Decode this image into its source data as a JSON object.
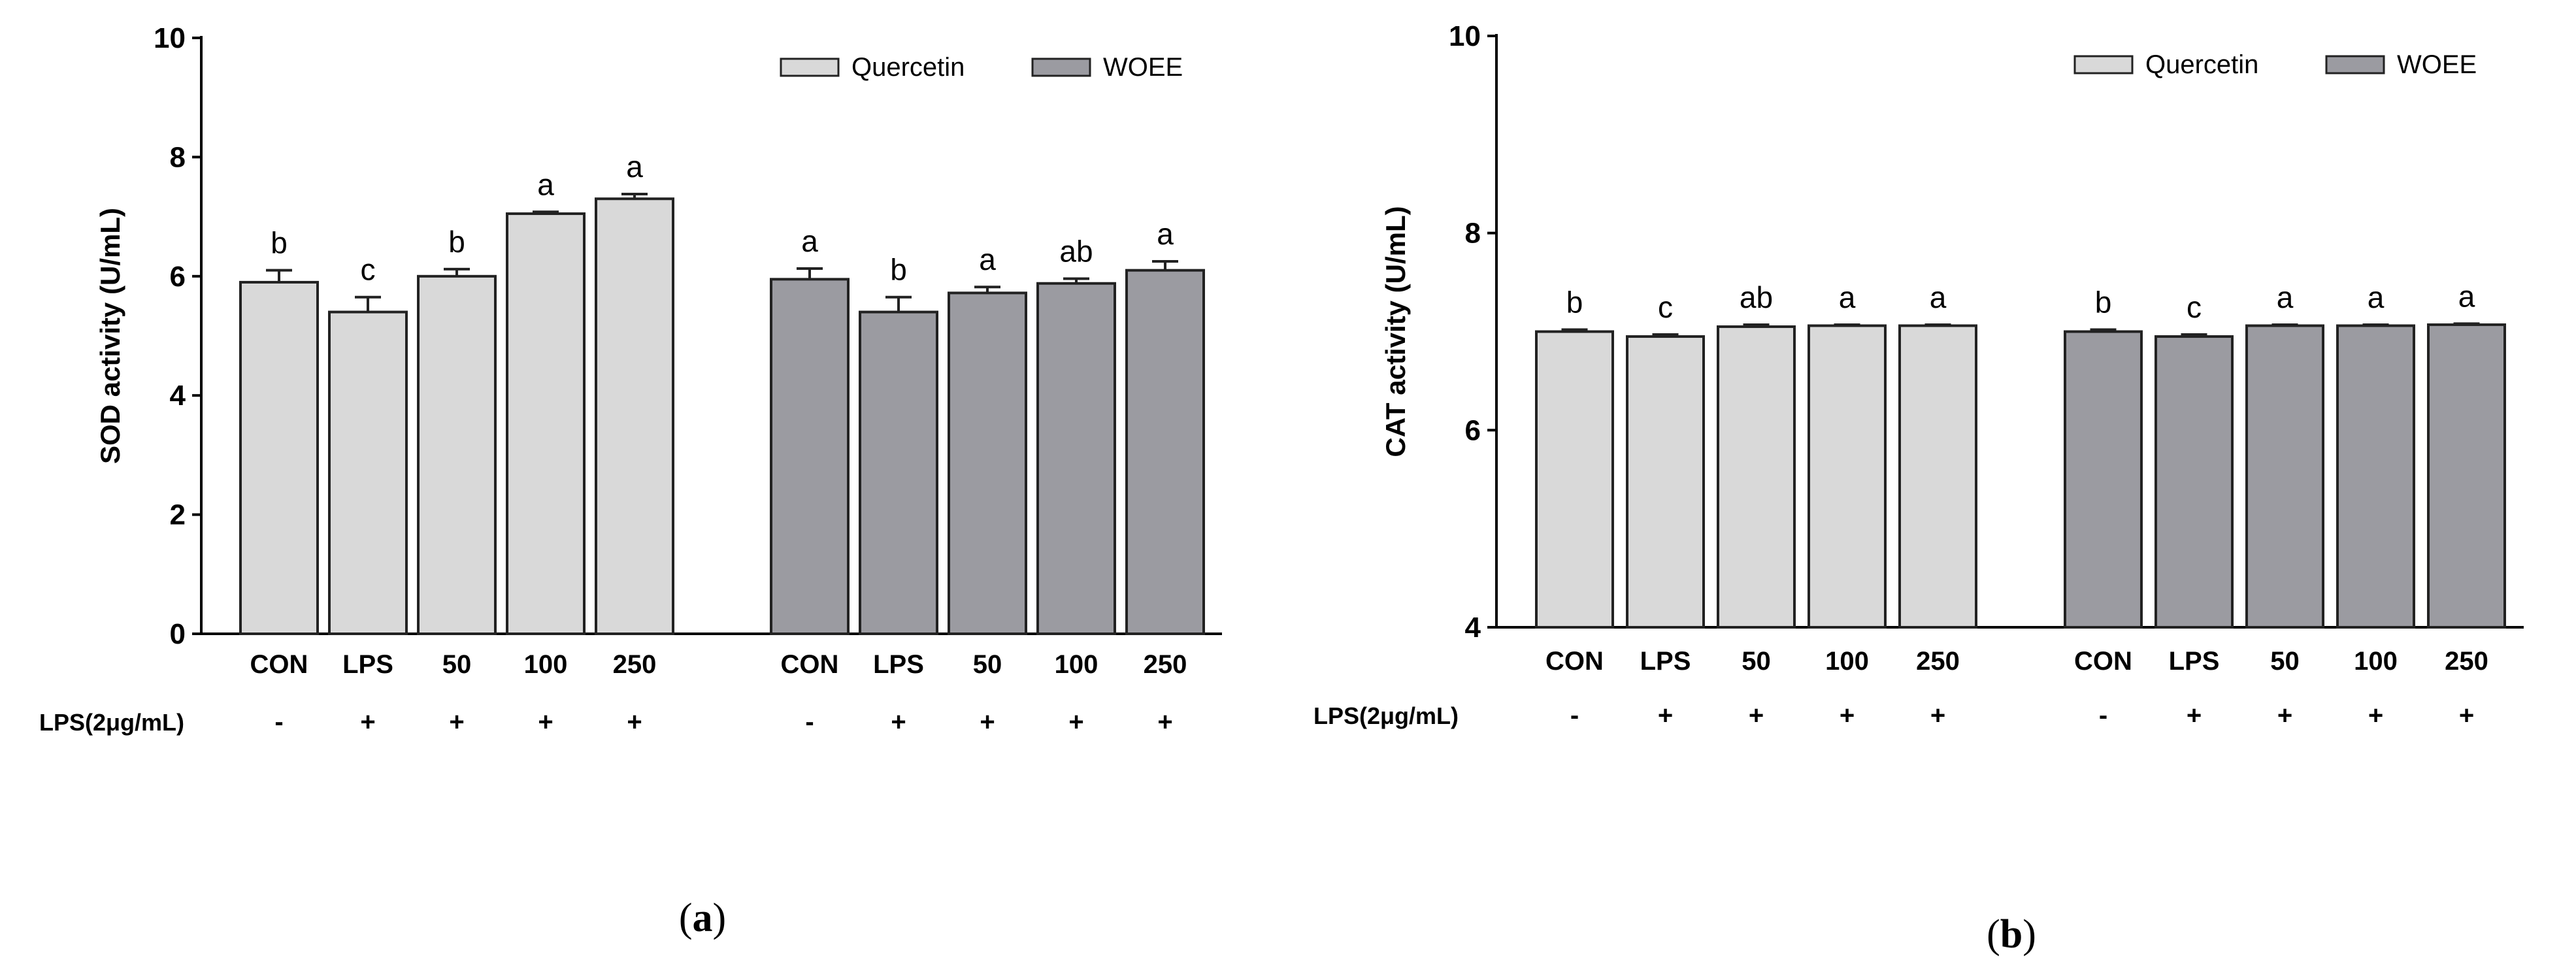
{
  "chart_data": [
    {
      "type": "bar",
      "panel_label": "a",
      "ylabel": "SOD activity (U/mL)",
      "ylim": [
        0,
        10
      ],
      "yticks": [
        0,
        2,
        4,
        6,
        8,
        10
      ],
      "categories": [
        "CON",
        "LPS",
        "50",
        "100",
        "250"
      ],
      "lps_row_label": "LPS(2μg/mL)",
      "lps_marks": [
        "-",
        "+",
        "+",
        "+",
        "+"
      ],
      "legend": {
        "position": "top-right",
        "entries": [
          "Quercetin",
          "WOEE"
        ]
      },
      "colors": {
        "Quercetin": "#d9d9d9",
        "WOEE": "#9b9ba1"
      },
      "series": [
        {
          "name": "Quercetin",
          "values": [
            5.9,
            5.4,
            6.0,
            7.05,
            7.3
          ],
          "errors": [
            0.2,
            0.25,
            0.12,
            0.03,
            0.08
          ],
          "significance": [
            "b",
            "c",
            "b",
            "a",
            "a"
          ]
        },
        {
          "name": "WOEE",
          "values": [
            5.95,
            5.4,
            5.72,
            5.88,
            6.1
          ],
          "errors": [
            0.18,
            0.25,
            0.1,
            0.08,
            0.15
          ],
          "significance": [
            "a",
            "b",
            "a",
            "ab",
            "a"
          ]
        }
      ]
    },
    {
      "type": "bar",
      "panel_label": "b",
      "ylabel": "CAT activity (U/mL)",
      "ylim": [
        4,
        10
      ],
      "yticks": [
        4,
        6,
        8,
        10
      ],
      "categories": [
        "CON",
        "LPS",
        "50",
        "100",
        "250"
      ],
      "lps_row_label": "LPS(2μg/mL)",
      "lps_marks": [
        "-",
        "+",
        "+",
        "+",
        "+"
      ],
      "legend": {
        "position": "top-right",
        "entries": [
          "Quercetin",
          "WOEE"
        ]
      },
      "colors": {
        "Quercetin": "#d9d9d9",
        "WOEE": "#9b9ba1"
      },
      "series": [
        {
          "name": "Quercetin",
          "values": [
            7.0,
            6.95,
            7.05,
            7.06,
            7.06
          ],
          "errors": [
            0.02,
            0.02,
            0.02,
            0.01,
            0.01
          ],
          "significance": [
            "b",
            "c",
            "ab",
            "a",
            "a"
          ]
        },
        {
          "name": "WOEE",
          "values": [
            7.0,
            6.95,
            7.06,
            7.06,
            7.07
          ],
          "errors": [
            0.02,
            0.02,
            0.01,
            0.01,
            0.01
          ],
          "significance": [
            "b",
            "c",
            "a",
            "a",
            "a"
          ]
        }
      ]
    }
  ],
  "captions": {
    "a": {
      "open": "(",
      "letter": "a",
      "close": ")"
    },
    "b": {
      "open": "(",
      "letter": "b",
      "close": ")"
    }
  }
}
